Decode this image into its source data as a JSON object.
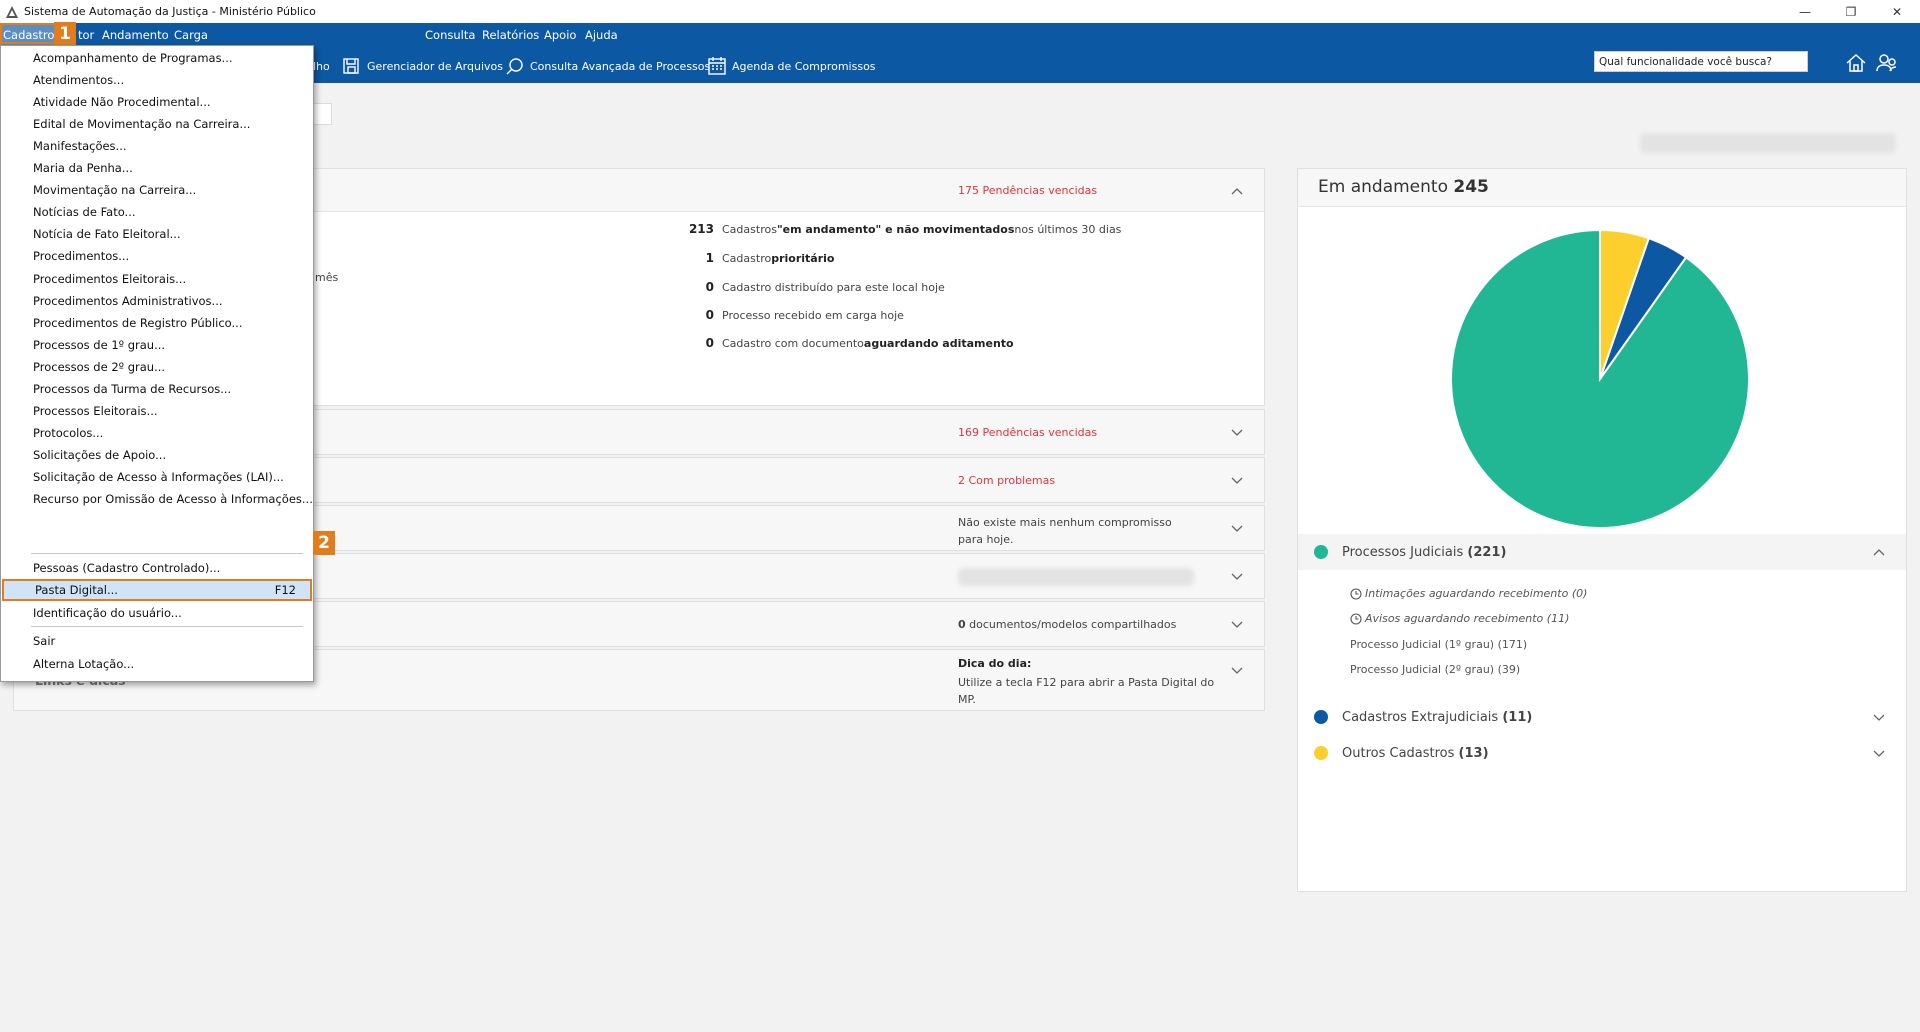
{
  "window": {
    "title": "Sistema de Automação da Justiça - Ministério Público",
    "controls": [
      "—",
      "❐",
      "✕"
    ]
  },
  "menubar": {
    "items": [
      {
        "label": "Cadastro"
      },
      {
        "label": "tor"
      },
      {
        "label": "Andamento"
      },
      {
        "label": "Carga"
      },
      {
        "label": "Consulta"
      },
      {
        "label": "Relatórios"
      },
      {
        "label": "Apoio"
      },
      {
        "label": "Ajuda"
      }
    ]
  },
  "toolbar": {
    "items": [
      {
        "label": "lho",
        "icon": "none"
      },
      {
        "label": "Gerenciador de Arquivos",
        "icon": "file-manager-icon"
      },
      {
        "label": "Consulta Avançada de Processos",
        "icon": "advanced-search-icon"
      },
      {
        "label": "Agenda de Compromissos",
        "icon": "calendar-icon"
      }
    ]
  },
  "search": {
    "placeholder": "Qual funcionalidade você busca?"
  },
  "dropdown": {
    "items": [
      {
        "label": "Acompanhamento de Programas..."
      },
      {
        "label": "Atendimentos..."
      },
      {
        "label": "Atividade Não Procedimental..."
      },
      {
        "label": "Edital de Movimentação na Carreira..."
      },
      {
        "label": "Manifestações..."
      },
      {
        "label": "Maria da Penha..."
      },
      {
        "label": "Movimentação na Carreira..."
      },
      {
        "label": "Notícias de Fato..."
      },
      {
        "label": "Notícia de Fato Eleitoral..."
      },
      {
        "label": "Procedimentos..."
      },
      {
        "label": "Procedimentos Eleitorais..."
      },
      {
        "label": "Procedimentos Administrativos..."
      },
      {
        "label": "Procedimentos de Registro Público..."
      },
      {
        "label": "Processos de 1º grau..."
      },
      {
        "label": "Processos de 2º grau..."
      },
      {
        "label": "Processos da Turma de Recursos..."
      },
      {
        "label": "Processos Eleitorais..."
      },
      {
        "label": "Protocolos..."
      },
      {
        "label": "Solicitações de Apoio..."
      },
      {
        "label": "Solicitação de Acesso à Informações (LAI)..."
      },
      {
        "label": "Recurso por Omissão de Acesso à Informações..."
      }
    ],
    "items2": [
      {
        "label": "Pessoas (Cadastro Controlado)..."
      },
      {
        "label": "Pasta Digital...",
        "shortcut": "F12"
      },
      {
        "label": "Identificação do usuário..."
      }
    ],
    "items3": [
      {
        "label": "Sair"
      },
      {
        "label": "Alterna Lotação..."
      }
    ]
  },
  "annotations": {
    "step1": "1",
    "step2": "2"
  },
  "panels": {
    "p1": {
      "status": "175 Pendências vencidas",
      "fragment": "mês",
      "rows": [
        {
          "num": "213",
          "pre": "Cadastros ",
          "bold": "\"em andamento\" e não movimentados",
          "post": " nos últimos 30 dias"
        },
        {
          "num": "1",
          "pre": "Cadastro ",
          "bold": "prioritário",
          "post": ""
        },
        {
          "num": "0",
          "pre": "Cadastro distribuído para este local hoje",
          "bold": "",
          "post": ""
        },
        {
          "num": "0",
          "pre": "Processo recebido em carga hoje",
          "bold": "",
          "post": ""
        },
        {
          "num": "0",
          "pre": "Cadastro com documento ",
          "bold": "aguardando aditamento",
          "post": ""
        }
      ]
    },
    "p2": {
      "status": "169 Pendências vencidas"
    },
    "p3": {
      "status": "2 Com problemas"
    },
    "p4": {
      "status": "Não existe mais nenhum compromisso para hoje."
    },
    "p6": {
      "num": "0",
      "status": " documentos/modelos compartilhados"
    },
    "p7": {
      "title": "Links e dicas",
      "tip_title": "Dica do dia:",
      "tip_text": "Utilize a tecla F12 para abrir a Pasta Digital do MP."
    }
  },
  "right_card": {
    "title": "Em andamento",
    "total": "245",
    "legend": [
      {
        "label": "Processos Judiciais",
        "count": "(221)",
        "color": "#21b795"
      },
      {
        "label": "Cadastros Extrajudiciais",
        "count": "(11)",
        "color": "#0d58a2"
      },
      {
        "label": "Outros Cadastros",
        "count": "(13)",
        "color": "#fccf2c"
      }
    ],
    "subitems": [
      {
        "label": "Intimações aguardando recebimento (0)",
        "italic": true
      },
      {
        "label": "Avisos aguardando recebimento (11)",
        "italic": true
      },
      {
        "label": "Processo Judicial (1º grau) (171)",
        "italic": false
      },
      {
        "label": "Processo Judicial (2º grau) (39)",
        "italic": false
      }
    ]
  },
  "chart_data": {
    "type": "pie",
    "title": "",
    "categories": [
      "Processos Judiciais",
      "Cadastros Extrajudiciais",
      "Outros Cadastros"
    ],
    "values": [
      221,
      11,
      13
    ],
    "colors": [
      "#21b795",
      "#0d58a2",
      "#fccf2c"
    ]
  }
}
